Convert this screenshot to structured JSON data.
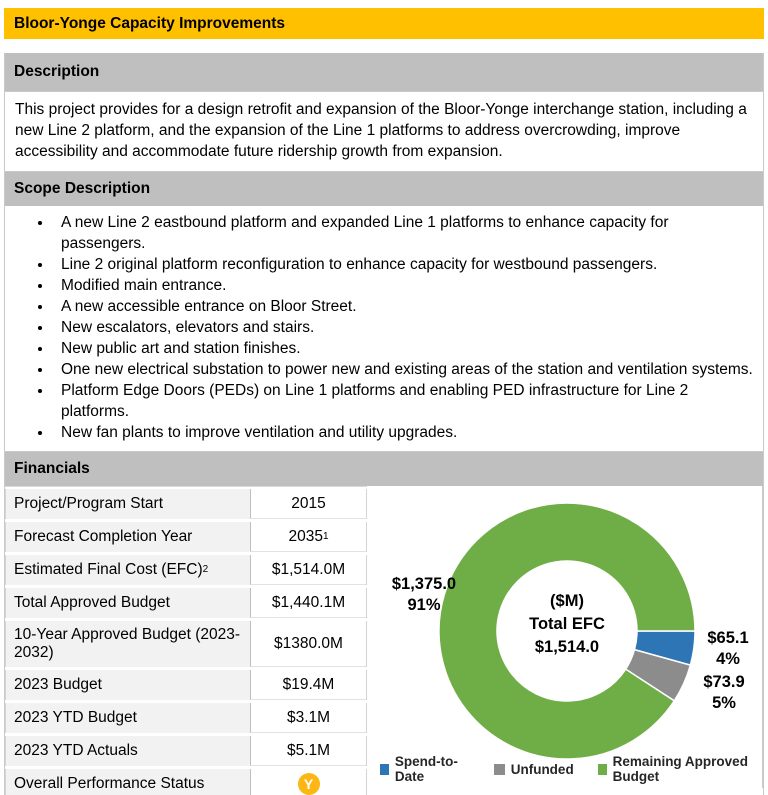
{
  "title": "Bloor-Yonge Capacity Improvements",
  "colors": {
    "title_bar": "#FFC000",
    "section_header": "#BFBFBF",
    "status_yellow": "#FDB714"
  },
  "sections": {
    "description": {
      "heading": "Description",
      "text": "This project provides for a design retrofit and expansion of the Bloor-Yonge interchange station, including a new Line 2 platform, and the expansion of the Line 1 platforms to address overcrowding, improve accessibility and accommodate future ridership growth from expansion."
    },
    "scope": {
      "heading": "Scope Description",
      "bullets": [
        "A new Line 2 eastbound platform and expanded Line 1 platforms to enhance capacity for passengers.",
        "Line 2 original platform reconfiguration to enhance capacity for westbound passengers.",
        "Modified main entrance.",
        "A new accessible entrance on Bloor Street.",
        "New escalators, elevators and stairs.",
        "New public art and station finishes.",
        "One new electrical substation to power new and existing areas of the station and ventilation systems.",
        "Platform Edge Doors (PEDs) on Line 1 platforms and enabling PED infrastructure for Line 2 platforms.",
        "New fan plants to improve ventilation and utility upgrades."
      ]
    },
    "financials": {
      "heading": "Financials",
      "rows": [
        {
          "label": "Project/Program Start",
          "value": "2015"
        },
        {
          "label": "Forecast Completion Year",
          "value": "2035",
          "value_sup": "1"
        },
        {
          "label": "Estimated Final Cost (EFC)",
          "label_sup": "2",
          "value": "$1,514.0M"
        },
        {
          "label": "Total Approved Budget",
          "value": "$1,440.1M"
        },
        {
          "label": "10-Year Approved Budget (2023-2032)",
          "value": "$1380.0M"
        },
        {
          "label": "2023 Budget",
          "value": "$19.4M"
        },
        {
          "label": "2023 YTD Budget",
          "value": "$3.1M"
        },
        {
          "label": "2023 YTD Actuals",
          "value": "$5.1M"
        }
      ],
      "status_row": {
        "label": "Overall Performance Status",
        "status": {
          "value": "Y",
          "color": "#FDB714"
        }
      }
    }
  },
  "chart_data": {
    "type": "pie",
    "subtype": "donut",
    "title_lines": [
      "($M)",
      "Total EFC",
      "$1,514.0"
    ],
    "total": 1514.0,
    "start_angle_deg": 90,
    "legend_position": "bottom",
    "series": [
      {
        "name": "Spend-to-Date",
        "value": 65.1,
        "value_label": "$65.1",
        "percent_label": "4%",
        "color": "#2E75B6"
      },
      {
        "name": "Unfunded",
        "value": 73.9,
        "value_label": "$73.9",
        "percent_label": "5%",
        "color": "#8C8C8C"
      },
      {
        "name": "Remaining Approved Budget",
        "value": 1375.0,
        "value_label": "$1,375.0",
        "percent_label": "91%",
        "color": "#6FAD46"
      }
    ]
  }
}
